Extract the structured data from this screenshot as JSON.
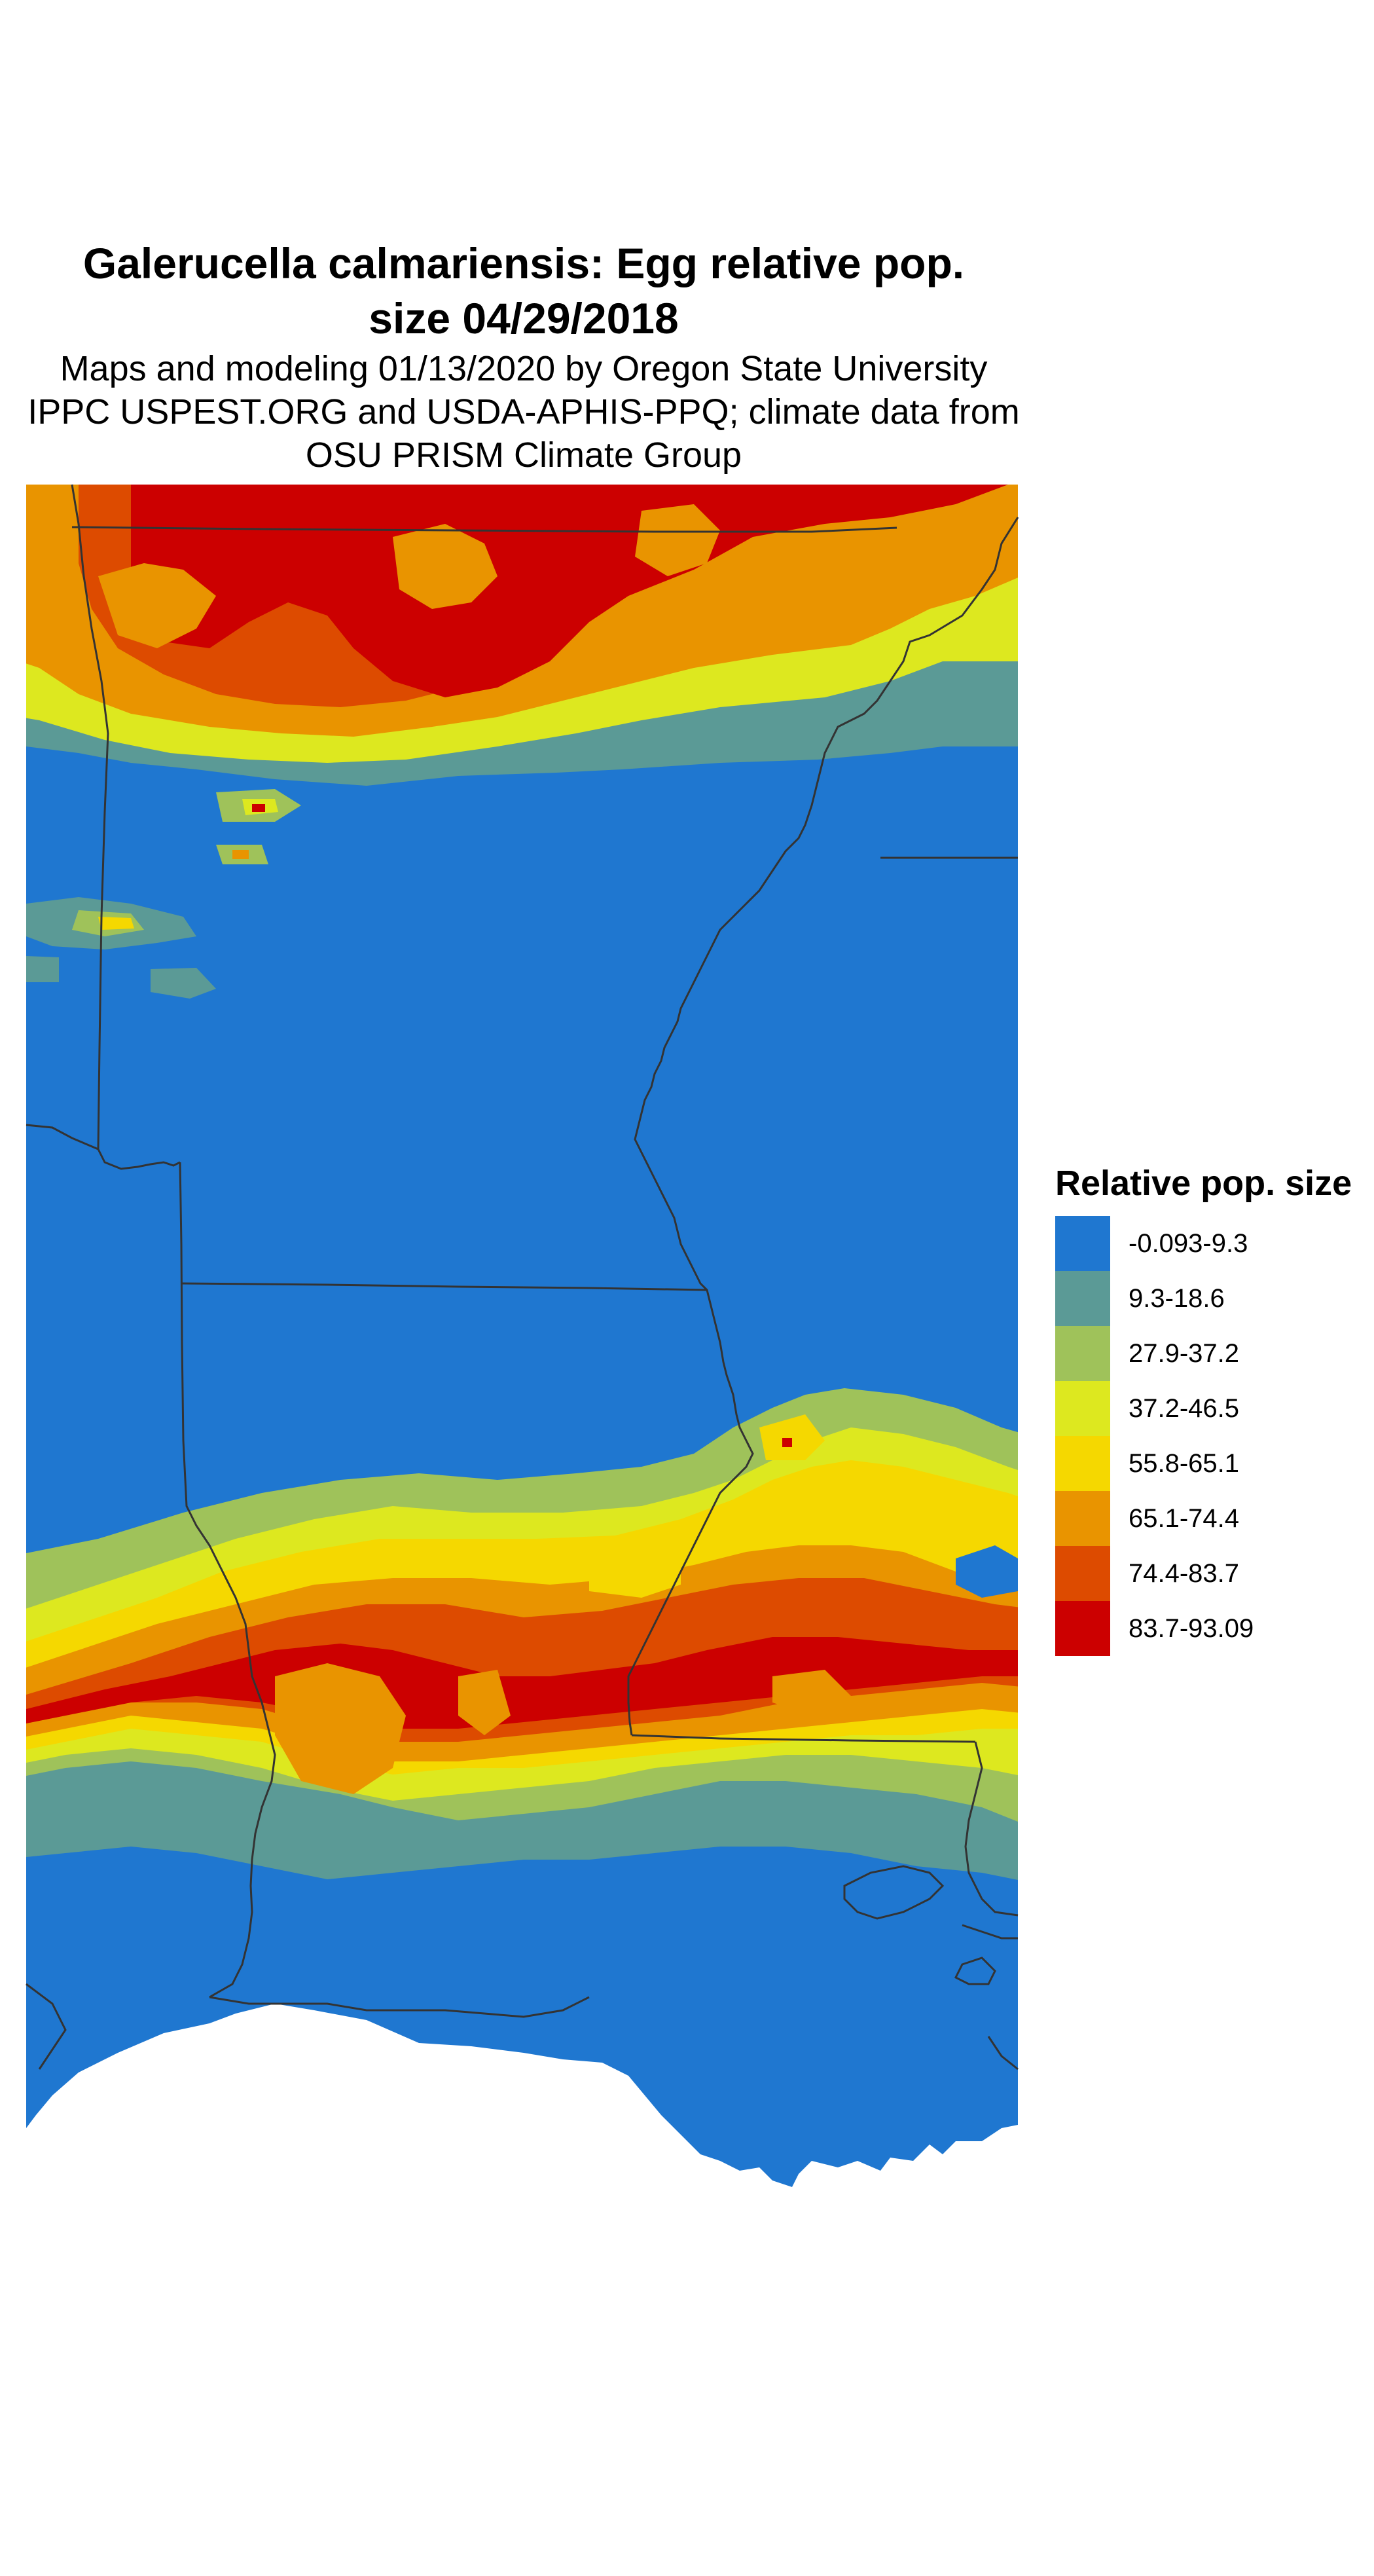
{
  "title": {
    "line1": "Galerucella calmariensis: Egg relative pop.",
    "line2": "size 04/29/2018"
  },
  "subtitle": {
    "line1": "Maps and modeling 01/13/2020 by Oregon State University",
    "line2": "IPPC USPEST.ORG and USDA-APHIS-PPQ; climate data from",
    "line3": "OSU PRISM Climate Group"
  },
  "legend": {
    "title": "Relative pop. size",
    "items": [
      {
        "label": "-0.093-9.3",
        "color": "#1f77d0"
      },
      {
        "label": "9.3-18.6",
        "color": "#5b9a96"
      },
      {
        "label": "27.9-37.2",
        "color": "#9fc25a"
      },
      {
        "label": "37.2-46.5",
        "color": "#dde81f"
      },
      {
        "label": "55.8-65.1",
        "color": "#f5d800"
      },
      {
        "label": "65.1-74.4",
        "color": "#e99400"
      },
      {
        "label": "74.4-83.7",
        "color": "#dd4b00"
      },
      {
        "label": "83.7-93.09",
        "color": "#cc0000"
      }
    ]
  },
  "map": {
    "region": "Arkansas / Louisiana / Mississippi region",
    "bands": [
      "northern hot band",
      "central cool zone",
      "southern hot band",
      "gulf coast cool zone"
    ]
  }
}
